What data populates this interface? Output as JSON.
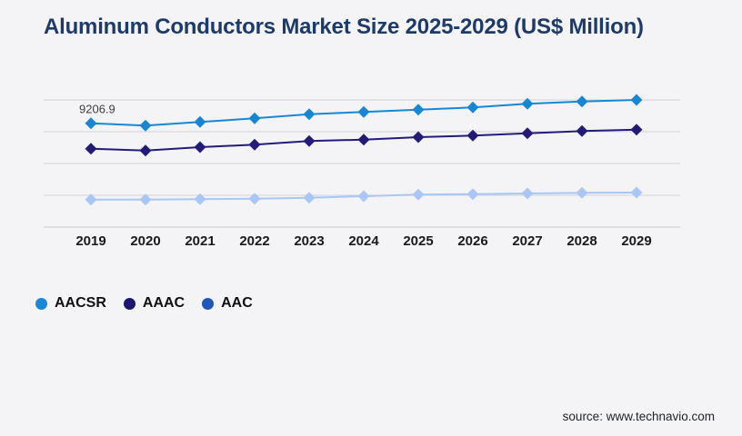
{
  "title": "Aluminum Conductors Market Size 2025-2029 (US$ Million)",
  "source": "source: www.technavio.com",
  "colors": {
    "background": "#f4f4f6",
    "title": "#1e3a68",
    "gridline": "#d2d2d7",
    "axis_line": "#c7c7cd",
    "year_label": "#1a1a1a",
    "data_label": "#3d3d3d",
    "source_text": "#20242c"
  },
  "legend": [
    {
      "label": "AACSR",
      "marker_color": "#1a87d8"
    },
    {
      "label": "AAAC",
      "marker_color": "#1d1670"
    },
    {
      "label": "AAC",
      "marker_color": "#2056b8"
    }
  ],
  "chart_data": {
    "type": "line",
    "title": "Aluminum Conductors Market Size 2025-2029 (US$ Million)",
    "xlabel": "",
    "ylabel": "US$ Million",
    "x": [
      "2019",
      "2020",
      "2021",
      "2022",
      "2023",
      "2024",
      "2025",
      "2026",
      "2027",
      "2028",
      "2029"
    ],
    "ylim": [
      0,
      11277
    ],
    "grid": "horizontal",
    "legend_position": "bottom-left",
    "series": [
      {
        "name": "AACSR",
        "color": "#1787d3",
        "values": [
          9206.9,
          8997,
          9320,
          9642,
          10012,
          10206,
          10415,
          10608,
          10931,
          11140,
          11277
        ]
      },
      {
        "name": "AAAC",
        "color": "#221c78",
        "values": [
          6952,
          6790,
          7088,
          7306,
          7628,
          7757,
          7974,
          8111,
          8321,
          8514,
          8643
        ]
      },
      {
        "name": "AAC",
        "color": "#a9c6f4",
        "values": [
          2441,
          2441,
          2473,
          2521,
          2602,
          2739,
          2876,
          2924,
          2980,
          3037,
          3061
        ]
      }
    ],
    "annotations": [
      {
        "series": "AACSR",
        "x": "2019",
        "label": "9206.9"
      }
    ]
  }
}
